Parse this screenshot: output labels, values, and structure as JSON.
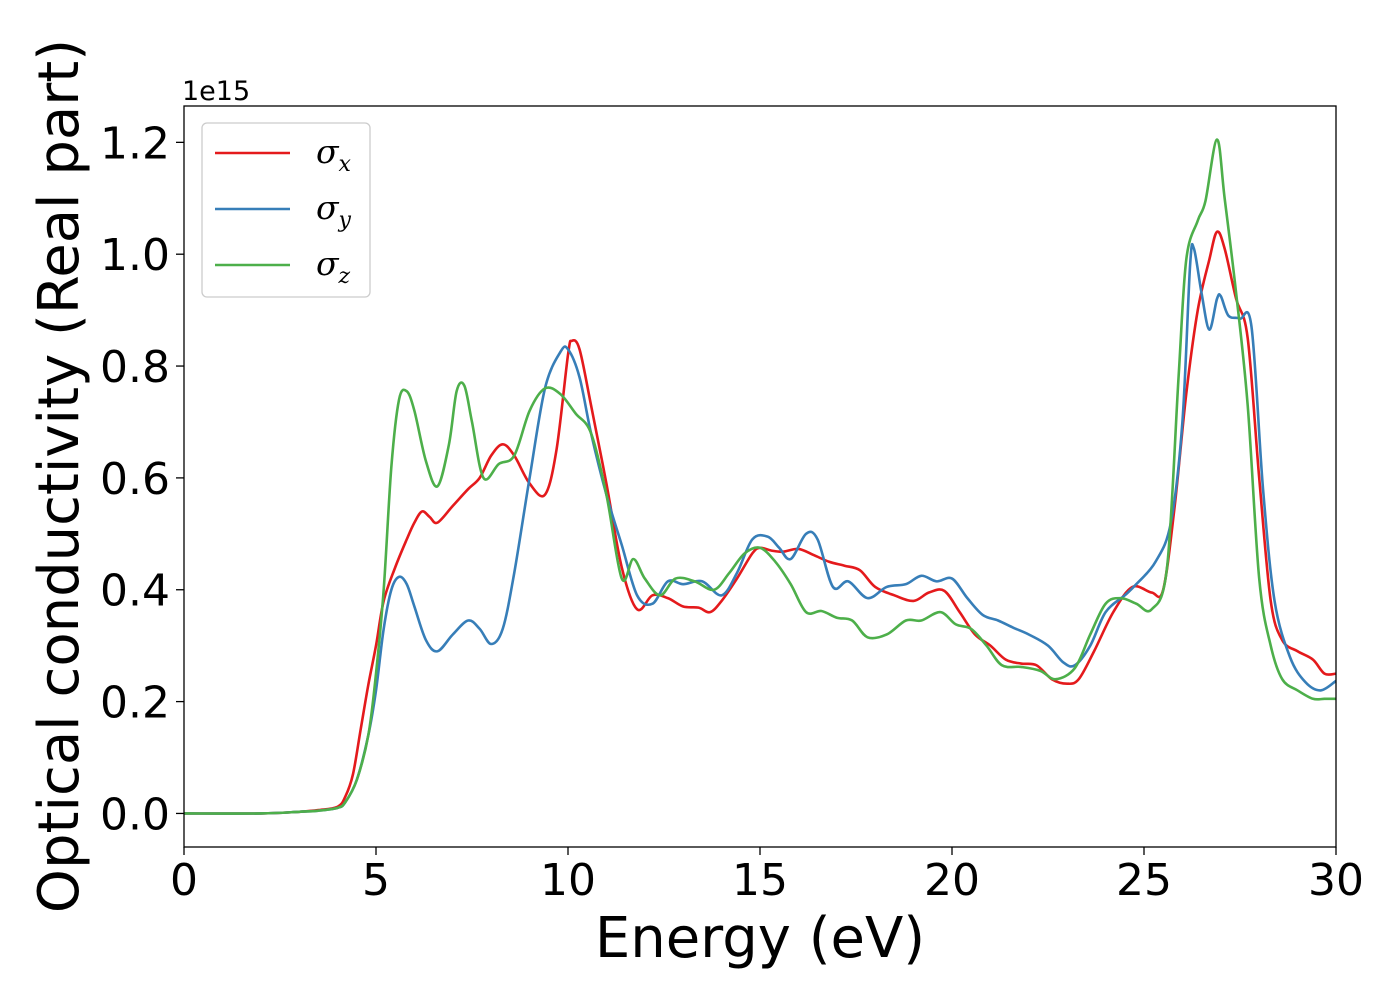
{
  "chart_data": {
    "type": "line",
    "title": "",
    "xlabel": "Energy (eV)",
    "ylabel": "Optical conductivity (Real part)",
    "y_offset_label": "1e15",
    "xlim": [
      0,
      30
    ],
    "ylim": [
      -0.06,
      1.265
    ],
    "x_ticks": [
      0,
      5,
      10,
      15,
      20,
      25,
      30
    ],
    "x_tick_labels": [
      "0",
      "5",
      "10",
      "15",
      "20",
      "25",
      "30"
    ],
    "y_ticks": [
      0.0,
      0.2,
      0.4,
      0.6,
      0.8,
      1.0,
      1.2
    ],
    "y_tick_labels": [
      "0.0",
      "0.2",
      "0.4",
      "0.6",
      "0.8",
      "1.0",
      "1.2"
    ],
    "grid": false,
    "legend_position": "top-left",
    "series": [
      {
        "name": "σx",
        "symbol": "σ",
        "subscript": "x",
        "color": "#e41a1c",
        "points": [
          [
            0,
            0
          ],
          [
            2,
            0
          ],
          [
            3,
            0.003
          ],
          [
            3.5,
            0.006
          ],
          [
            4,
            0.012
          ],
          [
            4.2,
            0.03
          ],
          [
            4.4,
            0.07
          ],
          [
            4.6,
            0.15
          ],
          [
            4.8,
            0.23
          ],
          [
            5,
            0.3
          ],
          [
            5.2,
            0.38
          ],
          [
            5.5,
            0.44
          ],
          [
            5.8,
            0.49
          ],
          [
            6,
            0.52
          ],
          [
            6.2,
            0.54
          ],
          [
            6.4,
            0.53
          ],
          [
            6.6,
            0.52
          ],
          [
            7,
            0.55
          ],
          [
            7.4,
            0.58
          ],
          [
            7.7,
            0.6
          ],
          [
            8,
            0.64
          ],
          [
            8.3,
            0.66
          ],
          [
            8.6,
            0.64
          ],
          [
            9,
            0.59
          ],
          [
            9.4,
            0.57
          ],
          [
            9.7,
            0.65
          ],
          [
            10,
            0.82
          ],
          [
            10.1,
            0.845
          ],
          [
            10.3,
            0.83
          ],
          [
            10.6,
            0.73
          ],
          [
            11,
            0.59
          ],
          [
            11.4,
            0.44
          ],
          [
            11.8,
            0.365
          ],
          [
            12.2,
            0.39
          ],
          [
            12.6,
            0.385
          ],
          [
            13,
            0.37
          ],
          [
            13.4,
            0.368
          ],
          [
            13.7,
            0.36
          ],
          [
            14,
            0.38
          ],
          [
            14.4,
            0.42
          ],
          [
            14.8,
            0.465
          ],
          [
            15,
            0.475
          ],
          [
            15.3,
            0.47
          ],
          [
            15.6,
            0.468
          ],
          [
            16,
            0.473
          ],
          [
            16.4,
            0.462
          ],
          [
            16.8,
            0.45
          ],
          [
            17.2,
            0.443
          ],
          [
            17.6,
            0.435
          ],
          [
            18,
            0.405
          ],
          [
            18.5,
            0.39
          ],
          [
            19,
            0.38
          ],
          [
            19.4,
            0.395
          ],
          [
            19.8,
            0.398
          ],
          [
            20.2,
            0.36
          ],
          [
            20.6,
            0.32
          ],
          [
            21,
            0.3
          ],
          [
            21.4,
            0.275
          ],
          [
            21.8,
            0.268
          ],
          [
            22.2,
            0.265
          ],
          [
            22.6,
            0.24
          ],
          [
            23,
            0.232
          ],
          [
            23.3,
            0.24
          ],
          [
            23.7,
            0.29
          ],
          [
            24.2,
            0.36
          ],
          [
            24.7,
            0.405
          ],
          [
            25.2,
            0.395
          ],
          [
            25.5,
            0.4
          ],
          [
            25.8,
            0.55
          ],
          [
            26.1,
            0.75
          ],
          [
            26.4,
            0.9
          ],
          [
            26.7,
            0.99
          ],
          [
            26.9,
            1.04
          ],
          [
            27.1,
            1.01
          ],
          [
            27.4,
            0.92
          ],
          [
            27.7,
            0.85
          ],
          [
            28,
            0.6
          ],
          [
            28.3,
            0.38
          ],
          [
            28.6,
            0.31
          ],
          [
            29,
            0.29
          ],
          [
            29.4,
            0.275
          ],
          [
            29.7,
            0.25
          ],
          [
            30,
            0.25
          ]
        ]
      },
      {
        "name": "σy",
        "symbol": "σ",
        "subscript": "y",
        "color": "#377eb8",
        "points": [
          [
            0,
            0
          ],
          [
            2,
            0
          ],
          [
            3,
            0.003
          ],
          [
            3.5,
            0.005
          ],
          [
            4,
            0.01
          ],
          [
            4.2,
            0.02
          ],
          [
            4.5,
            0.06
          ],
          [
            4.8,
            0.14
          ],
          [
            5,
            0.22
          ],
          [
            5.2,
            0.33
          ],
          [
            5.4,
            0.4
          ],
          [
            5.6,
            0.423
          ],
          [
            5.8,
            0.41
          ],
          [
            6,
            0.37
          ],
          [
            6.3,
            0.31
          ],
          [
            6.6,
            0.29
          ],
          [
            7,
            0.32
          ],
          [
            7.4,
            0.345
          ],
          [
            7.7,
            0.33
          ],
          [
            8,
            0.303
          ],
          [
            8.3,
            0.33
          ],
          [
            8.6,
            0.43
          ],
          [
            9,
            0.6
          ],
          [
            9.4,
            0.76
          ],
          [
            9.8,
            0.825
          ],
          [
            10,
            0.83
          ],
          [
            10.3,
            0.78
          ],
          [
            10.6,
            0.68
          ],
          [
            11,
            0.57
          ],
          [
            11.4,
            0.48
          ],
          [
            11.8,
            0.39
          ],
          [
            12.2,
            0.375
          ],
          [
            12.6,
            0.415
          ],
          [
            13,
            0.41
          ],
          [
            13.5,
            0.415
          ],
          [
            14,
            0.39
          ],
          [
            14.4,
            0.43
          ],
          [
            14.8,
            0.49
          ],
          [
            15.2,
            0.495
          ],
          [
            15.5,
            0.475
          ],
          [
            15.8,
            0.455
          ],
          [
            16.2,
            0.5
          ],
          [
            16.5,
            0.49
          ],
          [
            16.9,
            0.405
          ],
          [
            17.3,
            0.415
          ],
          [
            17.8,
            0.385
          ],
          [
            18.3,
            0.405
          ],
          [
            18.8,
            0.41
          ],
          [
            19.2,
            0.425
          ],
          [
            19.6,
            0.415
          ],
          [
            20,
            0.42
          ],
          [
            20.4,
            0.385
          ],
          [
            20.8,
            0.355
          ],
          [
            21.2,
            0.345
          ],
          [
            21.6,
            0.332
          ],
          [
            22,
            0.32
          ],
          [
            22.5,
            0.3
          ],
          [
            22.9,
            0.27
          ],
          [
            23.2,
            0.265
          ],
          [
            23.6,
            0.3
          ],
          [
            24,
            0.36
          ],
          [
            24.5,
            0.39
          ],
          [
            24.8,
            0.41
          ],
          [
            25.3,
            0.45
          ],
          [
            25.7,
            0.52
          ],
          [
            26,
            0.7
          ],
          [
            26.2,
            0.98
          ],
          [
            26.3,
            1.01
          ],
          [
            26.5,
            0.93
          ],
          [
            26.7,
            0.865
          ],
          [
            26.9,
            0.92
          ],
          [
            27,
            0.925
          ],
          [
            27.2,
            0.89
          ],
          [
            27.5,
            0.885
          ],
          [
            27.8,
            0.87
          ],
          [
            28.1,
            0.58
          ],
          [
            28.4,
            0.38
          ],
          [
            28.8,
            0.28
          ],
          [
            29.2,
            0.235
          ],
          [
            29.6,
            0.22
          ],
          [
            30,
            0.237
          ]
        ]
      },
      {
        "name": "σz",
        "symbol": "σ",
        "subscript": "z",
        "color": "#4daf4a",
        "points": [
          [
            0,
            0
          ],
          [
            2,
            0
          ],
          [
            3,
            0.003
          ],
          [
            3.5,
            0.005
          ],
          [
            4,
            0.01
          ],
          [
            4.2,
            0.02
          ],
          [
            4.5,
            0.06
          ],
          [
            4.8,
            0.14
          ],
          [
            5,
            0.25
          ],
          [
            5.2,
            0.4
          ],
          [
            5.4,
            0.62
          ],
          [
            5.6,
            0.74
          ],
          [
            5.8,
            0.755
          ],
          [
            6,
            0.72
          ],
          [
            6.3,
            0.63
          ],
          [
            6.6,
            0.585
          ],
          [
            6.9,
            0.66
          ],
          [
            7.1,
            0.755
          ],
          [
            7.3,
            0.765
          ],
          [
            7.5,
            0.7
          ],
          [
            7.8,
            0.6
          ],
          [
            8.2,
            0.625
          ],
          [
            8.6,
            0.64
          ],
          [
            9,
            0.72
          ],
          [
            9.4,
            0.76
          ],
          [
            9.8,
            0.75
          ],
          [
            10.2,
            0.715
          ],
          [
            10.6,
            0.68
          ],
          [
            11,
            0.57
          ],
          [
            11.4,
            0.42
          ],
          [
            11.7,
            0.455
          ],
          [
            12,
            0.42
          ],
          [
            12.4,
            0.39
          ],
          [
            12.8,
            0.42
          ],
          [
            13.3,
            0.415
          ],
          [
            13.8,
            0.4
          ],
          [
            14.2,
            0.43
          ],
          [
            14.6,
            0.465
          ],
          [
            15,
            0.475
          ],
          [
            15.4,
            0.45
          ],
          [
            15.8,
            0.41
          ],
          [
            16.2,
            0.36
          ],
          [
            16.6,
            0.362
          ],
          [
            17,
            0.35
          ],
          [
            17.4,
            0.345
          ],
          [
            17.8,
            0.315
          ],
          [
            18.3,
            0.32
          ],
          [
            18.8,
            0.345
          ],
          [
            19.2,
            0.345
          ],
          [
            19.7,
            0.36
          ],
          [
            20.1,
            0.338
          ],
          [
            20.5,
            0.33
          ],
          [
            20.9,
            0.3
          ],
          [
            21.3,
            0.265
          ],
          [
            21.8,
            0.262
          ],
          [
            22.3,
            0.255
          ],
          [
            22.7,
            0.24
          ],
          [
            23.2,
            0.26
          ],
          [
            23.6,
            0.32
          ],
          [
            24,
            0.375
          ],
          [
            24.4,
            0.385
          ],
          [
            24.8,
            0.375
          ],
          [
            25.2,
            0.365
          ],
          [
            25.6,
            0.44
          ],
          [
            25.9,
            0.78
          ],
          [
            26.1,
            0.99
          ],
          [
            26.4,
            1.06
          ],
          [
            26.6,
            1.095
          ],
          [
            26.9,
            1.205
          ],
          [
            27.1,
            1.1
          ],
          [
            27.4,
            0.93
          ],
          [
            27.7,
            0.73
          ],
          [
            28,
            0.42
          ],
          [
            28.3,
            0.3
          ],
          [
            28.6,
            0.24
          ],
          [
            29,
            0.22
          ],
          [
            29.4,
            0.205
          ],
          [
            29.7,
            0.205
          ],
          [
            30,
            0.205
          ]
        ]
      }
    ]
  }
}
